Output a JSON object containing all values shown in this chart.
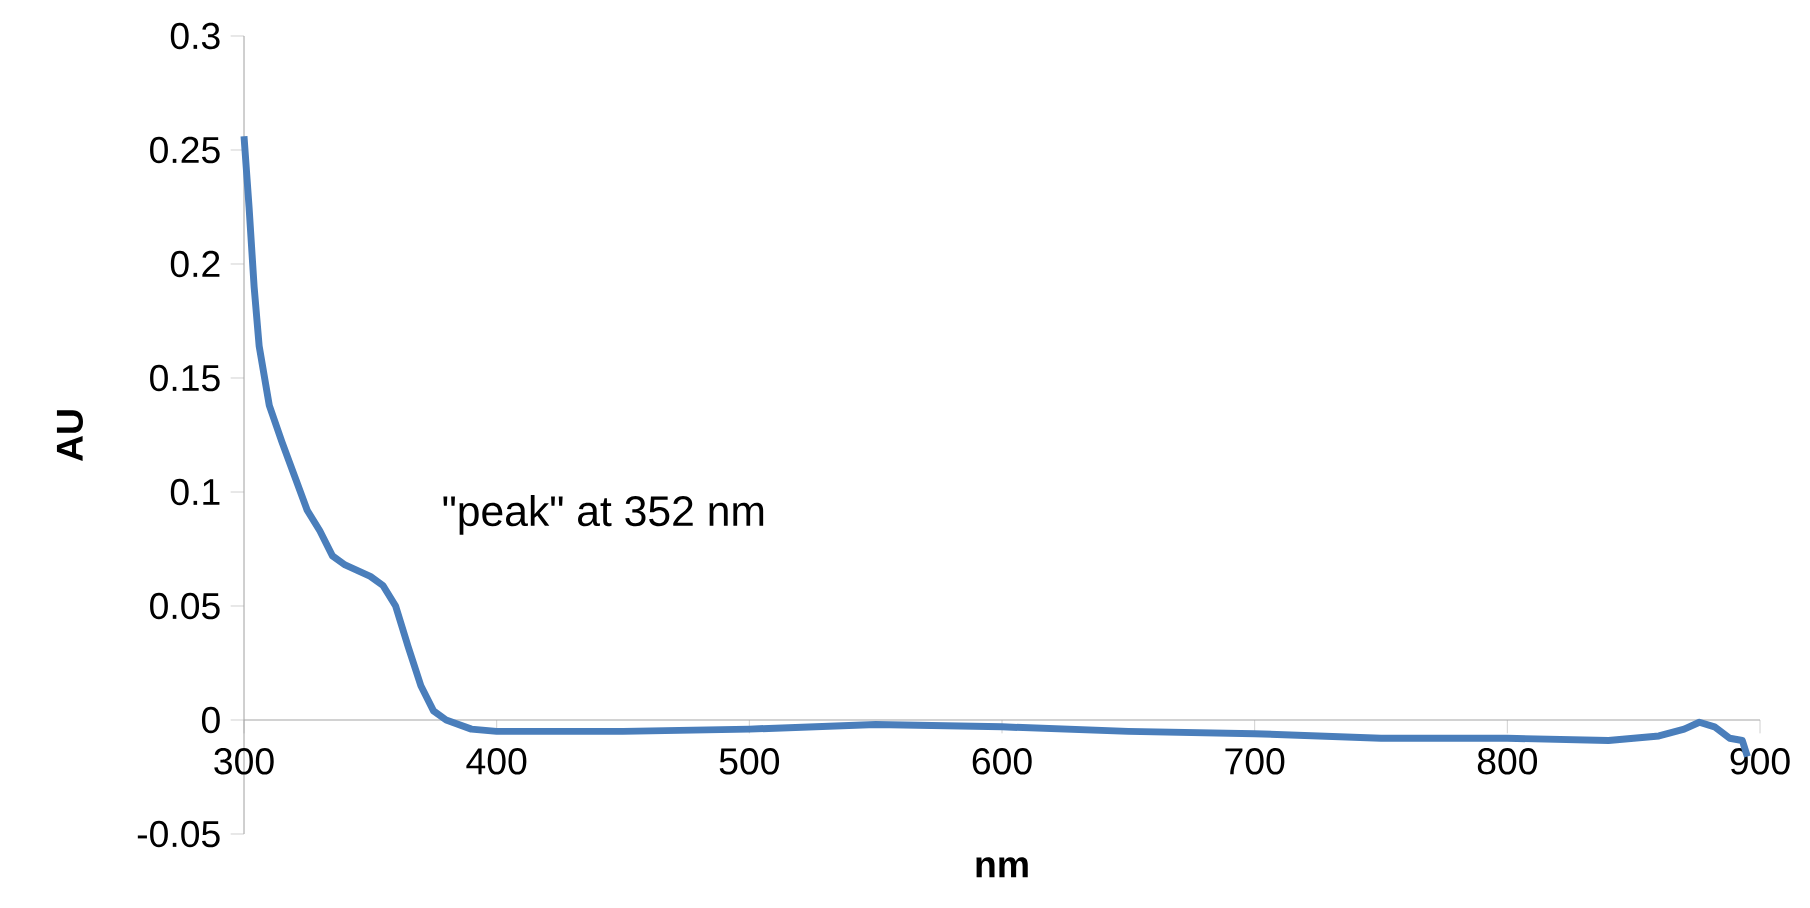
{
  "chart_data": {
    "type": "line",
    "xlabel": "nm",
    "ylabel": "AU",
    "annotations": [
      "\"peak\" at 352 nm"
    ],
    "xlim": [
      300,
      900
    ],
    "ylim": [
      -0.05,
      0.3
    ],
    "xticks": [
      300,
      400,
      500,
      600,
      700,
      800,
      900
    ],
    "yticks": [
      -0.05,
      0,
      0.05,
      0.1,
      0.15,
      0.2,
      0.25,
      0.3
    ],
    "marker": "none",
    "line_style": "solid",
    "series": [
      {
        "color": "#4a7ebb",
        "x": [
          300,
          302,
          304,
          306,
          310,
          315,
          320,
          325,
          330,
          335,
          340,
          350,
          355,
          360,
          365,
          370,
          375,
          380,
          390,
          400,
          450,
          500,
          550,
          600,
          650,
          700,
          750,
          800,
          840,
          860,
          870,
          876,
          882,
          888,
          893,
          895
        ],
        "values": [
          0.256,
          0.225,
          0.19,
          0.164,
          0.138,
          0.122,
          0.107,
          0.092,
          0.083,
          0.072,
          0.068,
          0.063,
          0.059,
          0.05,
          0.032,
          0.015,
          0.004,
          0,
          -0.004,
          -0.005,
          -0.005,
          -0.004,
          -0.002,
          -0.003,
          -0.005,
          -0.006,
          -0.008,
          -0.008,
          -0.009,
          -0.007,
          -0.004,
          -0.001,
          -0.003,
          -0.008,
          -0.009,
          -0.016
        ]
      }
    ]
  }
}
